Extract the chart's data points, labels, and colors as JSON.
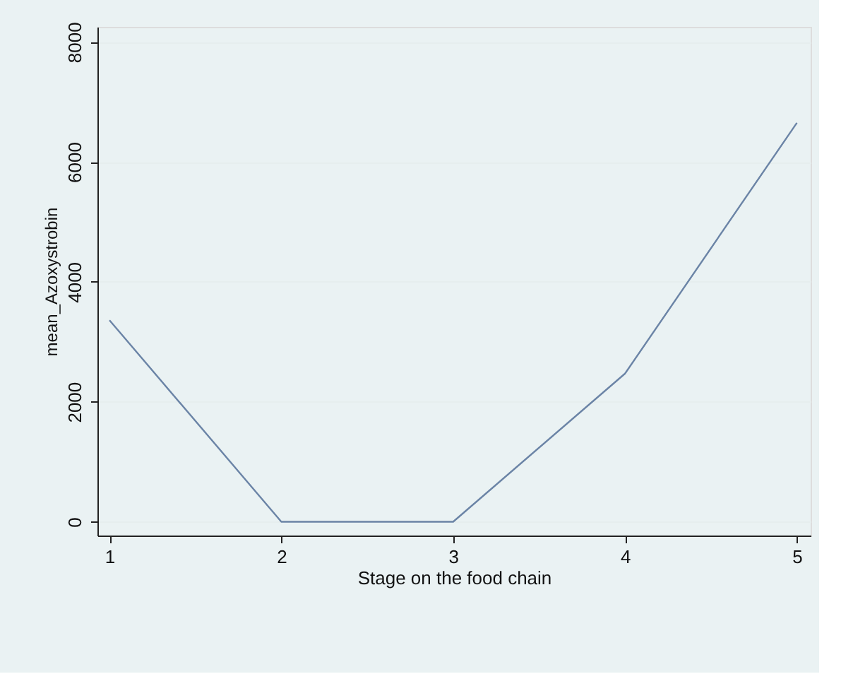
{
  "chart_data": {
    "type": "line",
    "xlabel": "Stage on the food chain",
    "ylabel": "mean_Azoxystrobin",
    "x": [
      1,
      2,
      3,
      4,
      5
    ],
    "series": [
      {
        "color": "#6b84a6",
        "values": [
          3360,
          0,
          0,
          2470,
          6650
        ]
      }
    ],
    "xlim": [
      0.93,
      5.08
    ],
    "xticks": [
      1,
      2,
      3,
      4,
      5
    ],
    "ylim": [
      -230,
      8250
    ],
    "yticks": [
      0,
      2000,
      4000,
      6000,
      8000
    ],
    "grid": "y",
    "marker": "none",
    "line_style": "solid"
  }
}
